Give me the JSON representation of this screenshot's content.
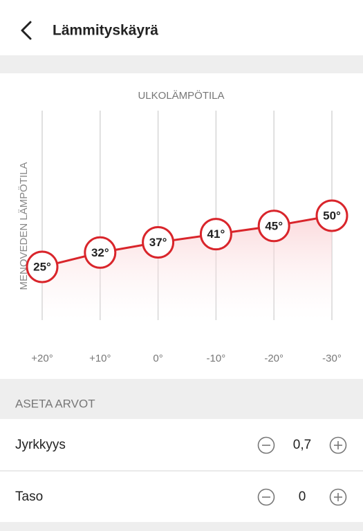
{
  "header": {
    "title": "Lämmityskäyrä"
  },
  "chart_data": {
    "type": "line",
    "x_label": "ULKOLÄMPÖTILA",
    "y_label": "MENOVEDEN LÄMPÖTILA",
    "categories": [
      "+20°",
      "+10°",
      "0°",
      "-10°",
      "-20°",
      "-30°"
    ],
    "values": [
      25,
      32,
      37,
      41,
      45,
      50
    ],
    "value_labels": [
      "25°",
      "32°",
      "37°",
      "41°",
      "45°",
      "50°"
    ],
    "color": "#d9252b",
    "grid": true
  },
  "settings": {
    "title": "ASETA ARVOT",
    "rows": [
      {
        "label": "Jyrkkyys",
        "value": "0,7"
      },
      {
        "label": "Taso",
        "value": "0"
      }
    ]
  }
}
